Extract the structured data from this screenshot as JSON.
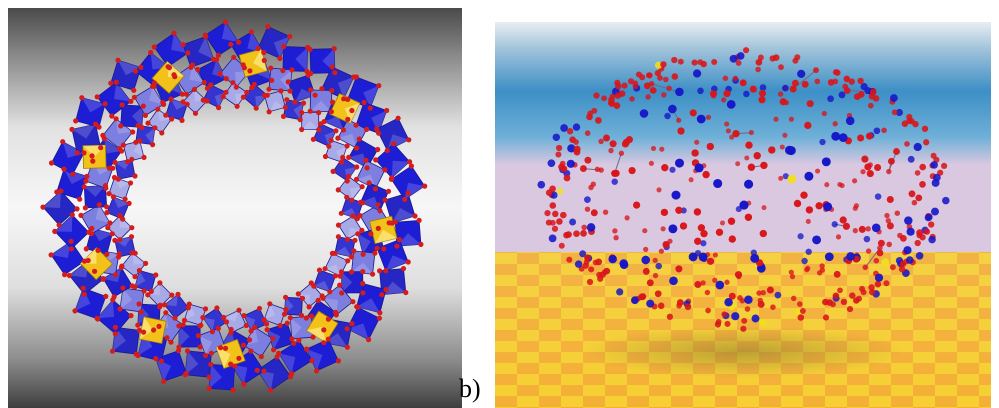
{
  "panel_b_label": "b)"
}
